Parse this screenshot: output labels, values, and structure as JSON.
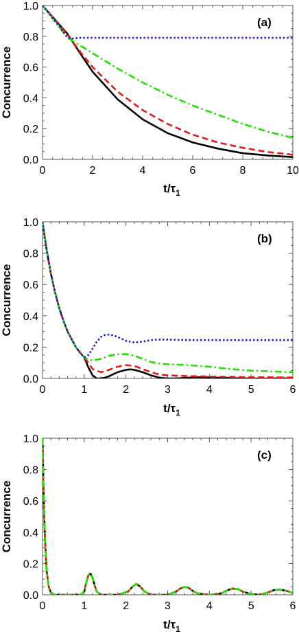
{
  "chart_data": [
    {
      "type": "line",
      "panel_label": "(a)",
      "xlabel": "t/τ1",
      "ylabel": "Concurrence",
      "xlim": [
        0,
        10
      ],
      "ylim": [
        0,
        1
      ],
      "xticks": [
        0,
        2,
        4,
        6,
        8,
        10
      ],
      "yticks": [
        0.0,
        0.2,
        0.4,
        0.6,
        0.8,
        1.0
      ],
      "series": [
        {
          "color": "#000000",
          "style": "solid",
          "x": [
            0,
            1,
            1.5,
            2,
            3,
            4,
            5,
            6,
            7,
            8,
            9,
            10
          ],
          "y": [
            1.0,
            0.815,
            0.69,
            0.57,
            0.39,
            0.26,
            0.17,
            0.11,
            0.07,
            0.04,
            0.025,
            0.015
          ]
        },
        {
          "color": "#e21a1a",
          "style": "dashed",
          "x": [
            0,
            1,
            1.5,
            2,
            3,
            4,
            5,
            6,
            7,
            8,
            9,
            10
          ],
          "y": [
            1.0,
            0.81,
            0.7,
            0.6,
            0.44,
            0.32,
            0.23,
            0.16,
            0.11,
            0.075,
            0.048,
            0.03
          ]
        },
        {
          "color": "#22e000",
          "style": "dashdot",
          "x": [
            0,
            1,
            1.5,
            2,
            3,
            4,
            5,
            6,
            7,
            8,
            9,
            10
          ],
          "y": [
            1.0,
            0.79,
            0.74,
            0.69,
            0.59,
            0.5,
            0.42,
            0.35,
            0.29,
            0.23,
            0.18,
            0.14
          ]
        },
        {
          "color": "#1a1acc",
          "style": "dotted",
          "x": [
            0,
            0.5,
            1,
            1.2,
            1.5,
            2,
            4,
            6,
            8,
            10
          ],
          "y": [
            1.0,
            0.9,
            0.79,
            0.785,
            0.79,
            0.79,
            0.79,
            0.79,
            0.79,
            0.79
          ]
        }
      ]
    },
    {
      "type": "line",
      "panel_label": "(b)",
      "xlabel": "t/τ1",
      "ylabel": "Concurrence",
      "xlim": [
        0,
        6
      ],
      "ylim": [
        0,
        1
      ],
      "xticks": [
        0,
        1,
        2,
        3,
        4,
        5,
        6
      ],
      "yticks": [
        0.0,
        0.2,
        0.4,
        0.6,
        0.8,
        1.0
      ],
      "series": [
        {
          "color": "#000000",
          "style": "solid",
          "x": [
            0,
            0.1,
            0.2,
            0.3,
            0.4,
            0.5,
            0.6,
            0.7,
            0.8,
            0.9,
            1.0,
            1.1,
            1.2,
            1.3,
            1.4,
            1.5,
            1.6,
            1.8,
            2.0,
            2.1,
            2.2,
            2.4,
            2.6,
            2.8,
            3.0,
            3.2,
            3.5,
            3.8,
            4.0,
            4.5,
            5.0,
            5.5,
            6.0
          ],
          "y": [
            1.0,
            0.82,
            0.67,
            0.55,
            0.45,
            0.37,
            0.3,
            0.25,
            0.2,
            0.165,
            0.135,
            0.07,
            0.02,
            0.0,
            0.0,
            0.005,
            0.015,
            0.04,
            0.055,
            0.058,
            0.055,
            0.04,
            0.02,
            0.005,
            0.0,
            0.0,
            0.005,
            0.008,
            0.006,
            0.002,
            0.0,
            0.0,
            0.0
          ]
        },
        {
          "color": "#e21a1a",
          "style": "dashed",
          "x": [
            0,
            0.1,
            0.2,
            0.3,
            0.4,
            0.5,
            0.6,
            0.7,
            0.8,
            0.9,
            1.0,
            1.1,
            1.2,
            1.4,
            1.6,
            1.8,
            2.0,
            2.2,
            2.4,
            2.6,
            2.8,
            3.0,
            3.5,
            4.0,
            4.5,
            5.0,
            5.5,
            6.0
          ],
          "y": [
            1.0,
            0.82,
            0.67,
            0.55,
            0.45,
            0.37,
            0.3,
            0.25,
            0.2,
            0.165,
            0.135,
            0.1,
            0.06,
            0.04,
            0.055,
            0.075,
            0.085,
            0.08,
            0.06,
            0.04,
            0.025,
            0.02,
            0.015,
            0.012,
            0.01,
            0.008,
            0.007,
            0.006
          ]
        },
        {
          "color": "#22e000",
          "style": "dashdot",
          "x": [
            0,
            0.1,
            0.2,
            0.3,
            0.4,
            0.5,
            0.6,
            0.7,
            0.8,
            0.9,
            1.0,
            1.1,
            1.2,
            1.4,
            1.6,
            1.8,
            2.0,
            2.2,
            2.4,
            2.6,
            2.8,
            3.0,
            3.5,
            4.0,
            4.5,
            5.0,
            5.5,
            6.0
          ],
          "y": [
            1.0,
            0.82,
            0.67,
            0.55,
            0.45,
            0.37,
            0.3,
            0.25,
            0.2,
            0.165,
            0.135,
            0.12,
            0.115,
            0.125,
            0.145,
            0.155,
            0.155,
            0.145,
            0.125,
            0.105,
            0.095,
            0.09,
            0.085,
            0.075,
            0.06,
            0.05,
            0.045,
            0.04
          ]
        },
        {
          "color": "#1a1acc",
          "style": "dotted",
          "x": [
            0,
            0.1,
            0.2,
            0.3,
            0.4,
            0.5,
            0.6,
            0.7,
            0.8,
            0.9,
            1.0,
            1.1,
            1.2,
            1.3,
            1.4,
            1.5,
            1.6,
            1.7,
            1.8,
            2.0,
            2.2,
            2.4,
            2.6,
            2.8,
            3.0,
            3.5,
            4.0,
            4.5,
            5.0,
            5.5,
            6.0
          ],
          "y": [
            1.0,
            0.82,
            0.67,
            0.55,
            0.45,
            0.37,
            0.3,
            0.25,
            0.2,
            0.165,
            0.135,
            0.15,
            0.19,
            0.235,
            0.265,
            0.278,
            0.28,
            0.275,
            0.265,
            0.24,
            0.23,
            0.235,
            0.245,
            0.248,
            0.248,
            0.245,
            0.245,
            0.245,
            0.245,
            0.245,
            0.245
          ]
        }
      ]
    },
    {
      "type": "line",
      "panel_label": "(c)",
      "xlabel": "t/τ1",
      "ylabel": "Concurrence",
      "xlim": [
        0,
        6
      ],
      "ylim": [
        0,
        1
      ],
      "xticks": [
        0,
        1,
        2,
        3,
        4,
        5,
        6
      ],
      "yticks": [
        0.0,
        0.2,
        0.4,
        0.6,
        0.8,
        1.0
      ],
      "series": [
        {
          "color": "#1a1acc",
          "style": "dotted",
          "x": [
            0,
            0.03,
            0.06,
            0.1,
            0.15,
            0.2,
            0.3,
            0.5,
            0.9,
            1.0,
            1.05,
            1.1,
            1.15,
            1.2,
            1.25,
            1.3,
            1.4,
            1.8,
            2.05,
            2.15,
            2.25,
            2.35,
            2.45,
            2.6,
            3.0,
            3.2,
            3.3,
            3.4,
            3.5,
            3.6,
            3.7,
            4.0,
            4.3,
            4.4,
            4.55,
            4.7,
            4.8,
            5.0,
            5.2,
            5.4,
            5.55,
            5.7,
            5.85,
            6.0
          ],
          "y": [
            1.0,
            0.6,
            0.35,
            0.15,
            0.05,
            0.015,
            0.0,
            0.0,
            0.0,
            0.02,
            0.08,
            0.125,
            0.135,
            0.11,
            0.06,
            0.02,
            0.0,
            0.0,
            0.02,
            0.05,
            0.07,
            0.05,
            0.02,
            0.0,
            0.0,
            0.02,
            0.04,
            0.05,
            0.045,
            0.025,
            0.01,
            0.0,
            0.01,
            0.025,
            0.04,
            0.035,
            0.02,
            0.005,
            0.0,
            0.015,
            0.03,
            0.033,
            0.025,
            0.012
          ]
        },
        {
          "color": "#000000",
          "style": "solid",
          "x": [
            0,
            0.03,
            0.06,
            0.1,
            0.15,
            0.2,
            0.3,
            0.5,
            0.9,
            1.0,
            1.05,
            1.1,
            1.15,
            1.2,
            1.25,
            1.3,
            1.4,
            1.8,
            2.05,
            2.15,
            2.25,
            2.35,
            2.45,
            2.6,
            3.0,
            3.2,
            3.3,
            3.4,
            3.5,
            3.6,
            3.7,
            4.0,
            4.3,
            4.4,
            4.55,
            4.7,
            4.8,
            5.0,
            5.2,
            5.4,
            5.55,
            5.7,
            5.85,
            6.0
          ],
          "y": [
            1.0,
            0.6,
            0.35,
            0.15,
            0.05,
            0.015,
            0.0,
            0.0,
            0.0,
            0.02,
            0.08,
            0.125,
            0.135,
            0.11,
            0.06,
            0.02,
            0.0,
            0.0,
            0.02,
            0.05,
            0.07,
            0.05,
            0.02,
            0.0,
            0.0,
            0.02,
            0.04,
            0.05,
            0.045,
            0.025,
            0.01,
            0.0,
            0.01,
            0.025,
            0.04,
            0.035,
            0.02,
            0.005,
            0.0,
            0.015,
            0.03,
            0.033,
            0.025,
            0.012
          ]
        },
        {
          "color": "#e21a1a",
          "style": "dashed",
          "x": [
            0,
            0.03,
            0.06,
            0.1,
            0.15,
            0.2,
            0.3,
            0.5,
            0.9,
            1.0,
            1.05,
            1.1,
            1.15,
            1.2,
            1.25,
            1.3,
            1.4,
            1.8,
            2.05,
            2.15,
            2.25,
            2.35,
            2.45,
            2.6,
            3.0,
            3.2,
            3.3,
            3.4,
            3.5,
            3.6,
            3.7,
            4.0,
            4.3,
            4.4,
            4.55,
            4.7,
            4.8,
            5.0,
            5.2,
            5.4,
            5.55,
            5.7,
            5.85,
            6.0
          ],
          "y": [
            1.0,
            0.6,
            0.35,
            0.15,
            0.05,
            0.015,
            0.0,
            0.0,
            0.0,
            0.02,
            0.08,
            0.125,
            0.135,
            0.11,
            0.06,
            0.02,
            0.0,
            0.0,
            0.02,
            0.05,
            0.07,
            0.05,
            0.02,
            0.0,
            0.0,
            0.02,
            0.04,
            0.05,
            0.045,
            0.025,
            0.01,
            0.0,
            0.01,
            0.025,
            0.04,
            0.035,
            0.02,
            0.005,
            0.0,
            0.015,
            0.03,
            0.033,
            0.025,
            0.012
          ]
        },
        {
          "color": "#22e000",
          "style": "dashdot",
          "x": [
            0,
            0.03,
            0.06,
            0.1,
            0.15,
            0.2,
            0.3,
            0.5,
            0.9,
            1.0,
            1.05,
            1.1,
            1.15,
            1.2,
            1.25,
            1.3,
            1.4,
            1.8,
            2.05,
            2.15,
            2.25,
            2.35,
            2.45,
            2.6,
            3.0,
            3.2,
            3.3,
            3.4,
            3.5,
            3.6,
            3.7,
            4.0,
            4.3,
            4.4,
            4.55,
            4.7,
            4.8,
            5.0,
            5.2,
            5.4,
            5.55,
            5.7,
            5.85,
            6.0
          ],
          "y": [
            1.0,
            0.6,
            0.35,
            0.15,
            0.05,
            0.015,
            0.0,
            0.0,
            0.0,
            0.02,
            0.08,
            0.125,
            0.135,
            0.11,
            0.06,
            0.02,
            0.0,
            0.0,
            0.02,
            0.05,
            0.07,
            0.05,
            0.02,
            0.0,
            0.0,
            0.02,
            0.04,
            0.05,
            0.045,
            0.025,
            0.01,
            0.0,
            0.01,
            0.025,
            0.04,
            0.035,
            0.02,
            0.005,
            0.0,
            0.015,
            0.03,
            0.033,
            0.025,
            0.012
          ]
        }
      ]
    }
  ]
}
